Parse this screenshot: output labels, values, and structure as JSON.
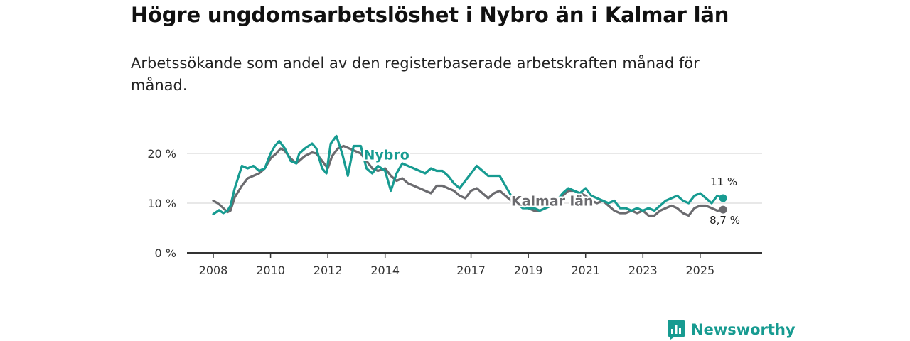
{
  "title": "Högre ungdomsarbetslöshet i Nybro än i Kalmar län",
  "subtitle": "Arbetssökande som andel av den registerbaserade arbetskraften månad för månad.",
  "brand": {
    "name": "Newsworthy"
  },
  "colors": {
    "nybro": "#179b91",
    "kalmar": "#6b6b6f",
    "grid": "#d9d9d9",
    "axis": "#333333"
  },
  "chart_data": {
    "type": "line",
    "title": "Högre ungdomsarbetslöshet i Nybro än i Kalmar län",
    "xlabel": "",
    "ylabel": "",
    "ylim": [
      0,
      25
    ],
    "xlim": [
      2007.6,
      2026.7
    ],
    "y_ticks": [
      0,
      10,
      20
    ],
    "y_tick_labels": [
      "0 %",
      "10 %",
      "20 %"
    ],
    "x_ticks": [
      2008,
      2010,
      2012,
      2014,
      2017,
      2019,
      2021,
      2023,
      2025
    ],
    "x_tick_labels": [
      "2008",
      "2010",
      "2012",
      "2014",
      "2017",
      "2019",
      "2021",
      "2023",
      "2025"
    ],
    "grid": true,
    "series": [
      {
        "name": "Kalmar län",
        "label": "Kalmar län",
        "end_label": "8,7 %",
        "x": [
          2008.0,
          2008.2,
          2008.35,
          2008.5,
          2008.6,
          2008.75,
          2009.0,
          2009.2,
          2009.4,
          2009.6,
          2009.8,
          2010.0,
          2010.2,
          2010.35,
          2010.5,
          2010.7,
          2010.9,
          2011.0,
          2011.2,
          2011.45,
          2011.6,
          2011.8,
          2012.0,
          2012.15,
          2012.35,
          2012.55,
          2012.75,
          2012.95,
          2013.15,
          2013.35,
          2013.55,
          2013.75,
          2014.0,
          2014.2,
          2014.4,
          2014.6,
          2014.8,
          2015.0,
          2015.2,
          2015.4,
          2015.6,
          2015.8,
          2016.0,
          2016.2,
          2016.4,
          2016.6,
          2016.8,
          2017.0,
          2017.2,
          2017.4,
          2017.6,
          2017.8,
          2018.0,
          2018.2,
          2018.4,
          2018.6,
          2018.8,
          2019.0,
          2019.2,
          2019.4,
          2019.6,
          2019.8,
          2020.0,
          2020.2,
          2020.4,
          2020.6,
          2020.8,
          2021.0,
          2021.2,
          2021.4,
          2021.6,
          2021.8,
          2022.0,
          2022.2,
          2022.4,
          2022.6,
          2022.8,
          2023.0,
          2023.2,
          2023.4,
          2023.6,
          2023.8,
          2024.0,
          2024.2,
          2024.4,
          2024.6,
          2024.8,
          2025.0,
          2025.2,
          2025.4,
          2025.6,
          2025.8
        ],
        "y": [
          10.5,
          9.8,
          9.0,
          8.2,
          8.5,
          11.2,
          13.5,
          15.0,
          15.5,
          16.0,
          17.0,
          19.0,
          20.0,
          21.0,
          20.5,
          19.0,
          18.0,
          18.5,
          19.5,
          20.2,
          20.0,
          18.5,
          17.0,
          19.5,
          21.0,
          21.5,
          21.0,
          20.5,
          20.0,
          18.5,
          17.0,
          16.5,
          17.0,
          15.5,
          14.5,
          15.0,
          14.0,
          13.5,
          13.0,
          12.5,
          12.0,
          13.5,
          13.5,
          13.0,
          12.5,
          11.5,
          11.0,
          12.5,
          13.0,
          12.0,
          11.0,
          12.0,
          12.5,
          11.5,
          10.5,
          10.0,
          9.5,
          9.0,
          8.5,
          8.5,
          9.0,
          9.5,
          10.5,
          11.5,
          12.5,
          12.5,
          12.0,
          11.5,
          10.5,
          10.0,
          10.5,
          9.5,
          8.5,
          8.0,
          8.0,
          8.5,
          8.0,
          8.5,
          7.5,
          7.5,
          8.5,
          9.0,
          9.5,
          9.0,
          8.0,
          7.5,
          9.0,
          9.5,
          9.5,
          9.0,
          8.5,
          8.7
        ]
      },
      {
        "name": "Nybro",
        "label": "Nybro",
        "end_label": "11 %",
        "x": [
          2008.0,
          2008.2,
          2008.35,
          2008.5,
          2008.6,
          2008.75,
          2009.0,
          2009.2,
          2009.4,
          2009.6,
          2009.8,
          2010.0,
          2010.15,
          2010.3,
          2010.5,
          2010.7,
          2010.9,
          2011.0,
          2011.2,
          2011.45,
          2011.6,
          2011.8,
          2011.95,
          2012.1,
          2012.3,
          2012.5,
          2012.7,
          2012.9,
          2013.15,
          2013.35,
          2013.55,
          2013.75,
          2014.0,
          2014.2,
          2014.4,
          2014.6,
          2014.8,
          2015.0,
          2015.2,
          2015.4,
          2015.6,
          2015.8,
          2016.0,
          2016.2,
          2016.4,
          2016.6,
          2016.8,
          2017.0,
          2017.2,
          2017.4,
          2017.6,
          2017.8,
          2018.0,
          2018.2,
          2018.4,
          2018.6,
          2018.8,
          2019.0,
          2019.2,
          2019.4,
          2019.6,
          2019.8,
          2020.0,
          2020.2,
          2020.4,
          2020.6,
          2020.8,
          2021.0,
          2021.2,
          2021.4,
          2021.6,
          2021.8,
          2022.0,
          2022.2,
          2022.4,
          2022.6,
          2022.8,
          2023.0,
          2023.2,
          2023.4,
          2023.6,
          2023.8,
          2024.0,
          2024.2,
          2024.4,
          2024.6,
          2024.8,
          2025.0,
          2025.2,
          2025.4,
          2025.6,
          2025.8
        ],
        "y": [
          7.8,
          8.6,
          8.0,
          8.5,
          9.5,
          13.0,
          17.5,
          17.0,
          17.5,
          16.5,
          17.0,
          20.0,
          21.5,
          22.5,
          21.0,
          18.5,
          18.0,
          20.0,
          21.0,
          22.0,
          21.0,
          17.0,
          16.0,
          22.0,
          23.5,
          20.0,
          15.5,
          21.5,
          21.5,
          17.0,
          16.0,
          17.5,
          16.5,
          12.5,
          16.0,
          18.0,
          17.5,
          17.0,
          16.5,
          16.0,
          17.0,
          16.5,
          16.5,
          15.5,
          14.0,
          13.0,
          14.5,
          16.0,
          17.5,
          16.5,
          15.5,
          15.5,
          15.5,
          13.5,
          11.5,
          10.0,
          9.0,
          9.0,
          9.0,
          8.5,
          9.0,
          9.5,
          10.5,
          12.0,
          13.0,
          12.5,
          12.0,
          13.0,
          11.5,
          11.0,
          10.5,
          10.0,
          10.5,
          9.0,
          9.0,
          8.5,
          9.0,
          8.5,
          9.0,
          8.5,
          9.5,
          10.5,
          11.0,
          11.5,
          10.5,
          10.0,
          11.5,
          12.0,
          11.0,
          10.0,
          11.5,
          11.0
        ]
      }
    ]
  }
}
